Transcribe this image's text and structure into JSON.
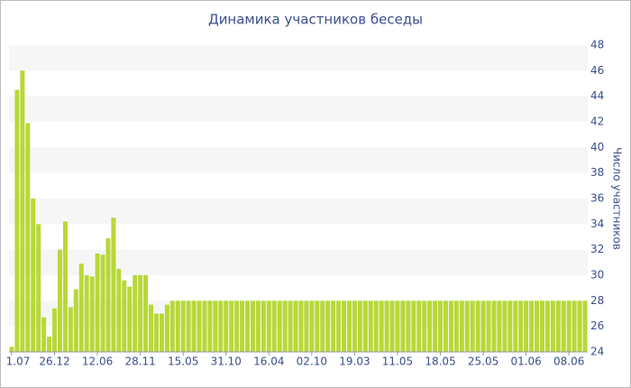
{
  "chart_data": {
    "type": "bar",
    "title": "Динамика участников беседы",
    "y_label": "Число участников",
    "categories": [
      "1.07",
      null,
      null,
      null,
      null,
      null,
      null,
      null,
      "26.12",
      null,
      null,
      null,
      null,
      null,
      null,
      null,
      "12.06",
      null,
      null,
      null,
      null,
      null,
      null,
      null,
      "28.11",
      null,
      null,
      null,
      null,
      null,
      null,
      null,
      "15.05",
      null,
      null,
      null,
      null,
      null,
      null,
      null,
      "31.10",
      null,
      null,
      null,
      null,
      null,
      null,
      null,
      "16.04",
      null,
      null,
      null,
      null,
      null,
      null,
      null,
      "02.10",
      null,
      null,
      null,
      null,
      null,
      null,
      null,
      "19.03",
      null,
      null,
      null,
      null,
      null,
      null,
      null,
      "11.05",
      null,
      null,
      null,
      null,
      null,
      null,
      null,
      "18.05",
      null,
      null,
      null,
      null,
      null,
      null,
      null,
      "25.05",
      null,
      null,
      null,
      null,
      null,
      null,
      null,
      "01.06",
      null,
      null,
      null,
      null,
      null,
      null,
      null,
      "08.06",
      null,
      null,
      null
    ],
    "values": [
      24.4,
      44.5,
      46,
      41.9,
      36,
      34,
      26.7,
      25.2,
      27.4,
      32,
      34.2,
      27.5,
      28.9,
      30.9,
      30,
      29.9,
      31.7,
      31.6,
      32.9,
      34.5,
      30.5,
      29.6,
      29.1,
      30,
      30,
      30,
      27.7,
      27,
      27,
      27.7,
      28,
      28,
      28,
      28,
      28,
      28,
      28,
      28,
      28,
      28,
      28,
      28,
      28,
      28,
      28,
      28,
      28,
      28,
      28,
      28,
      28,
      28,
      28,
      28,
      28,
      28,
      28,
      28,
      28,
      28,
      28,
      28,
      28,
      28,
      28,
      28,
      28,
      28,
      28,
      28,
      28,
      28,
      28,
      28,
      28,
      28,
      28,
      28,
      28,
      28,
      28,
      28,
      28,
      28,
      28,
      28,
      28,
      28,
      28,
      28,
      28,
      28,
      28,
      28,
      28,
      28,
      28,
      28,
      28,
      28,
      28,
      28,
      28,
      28,
      28,
      28,
      28,
      28
    ],
    "color": "#b8d838",
    "ylim": [
      24,
      48
    ],
    "yticks": [
      24,
      26,
      28,
      30,
      32,
      34,
      36,
      38,
      40,
      42,
      44,
      46,
      48
    ],
    "grid": true,
    "y_axis_side": "right"
  }
}
